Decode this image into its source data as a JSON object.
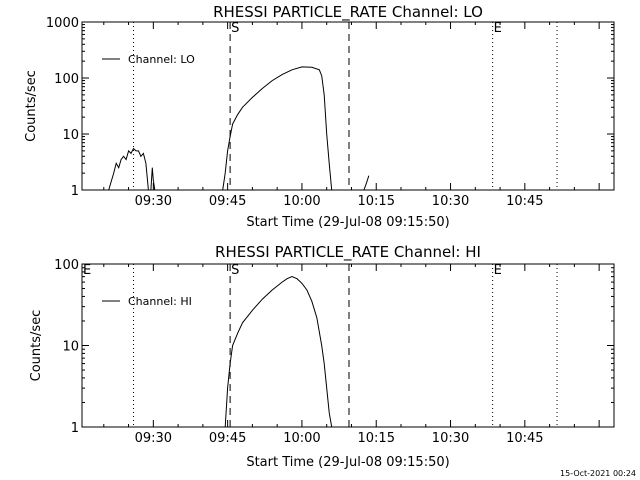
{
  "footer": {
    "timestamp": "15-Oct-2021 00:24"
  },
  "chart_data": [
    {
      "type": "line",
      "title": "RHESSI PARTICLE_RATE Channel: LO",
      "xlabel": "Start Time (29-Jul-08 09:15:50)",
      "ylabel": "Counts/sec",
      "y_scale": "log",
      "ylim": [
        1,
        1000
      ],
      "y_ticks": [
        1,
        10,
        100,
        1000
      ],
      "y_tick_labels": [
        "1",
        "10",
        "100",
        "1000"
      ],
      "x_ticks": [
        {
          "label": "09:30",
          "t": 30
        },
        {
          "label": "09:45",
          "t": 45
        },
        {
          "label": "10:00",
          "t": 60
        },
        {
          "label": "10:15",
          "t": 75
        },
        {
          "label": "10:30",
          "t": 90
        },
        {
          "label": "10:45",
          "t": 105
        }
      ],
      "legend": {
        "label": "Channel: LO",
        "position": "top-left"
      },
      "markers": [
        {
          "label": "S",
          "t": 45.5,
          "style": "dashed"
        },
        {
          "label": "",
          "t": 69.5,
          "style": "dashed"
        },
        {
          "label": "",
          "t": 26,
          "style": "dotted"
        },
        {
          "label": "E",
          "t": 98.5,
          "style": "dotted"
        },
        {
          "label": "",
          "t": 111.5,
          "style": "dotted"
        }
      ],
      "series": [
        {
          "segments": [
            [
              [
                21,
                1
              ],
              [
                22,
                2
              ],
              [
                22.5,
                3
              ],
              [
                23,
                2.5
              ],
              [
                23.5,
                3.5
              ],
              [
                24,
                4
              ],
              [
                24.5,
                3.5
              ],
              [
                25,
                5
              ],
              [
                25.5,
                4.5
              ],
              [
                26,
                5.5
              ],
              [
                26.5,
                5
              ],
              [
                27,
                5
              ],
              [
                27.5,
                4
              ],
              [
                28,
                4.5
              ],
              [
                28.5,
                3
              ],
              [
                29,
                1
              ]
            ],
            [
              [
                29.5,
                1
              ],
              [
                29.8,
                2.5
              ],
              [
                30,
                1.5
              ],
              [
                30.3,
                1
              ]
            ],
            [
              [
                44,
                1
              ],
              [
                44.5,
                2
              ],
              [
                45,
                5
              ],
              [
                45.5,
                9
              ],
              [
                46,
                15
              ],
              [
                47,
                22
              ],
              [
                48,
                30
              ],
              [
                50,
                45
              ],
              [
                52,
                65
              ],
              [
                54,
                90
              ],
              [
                56,
                115
              ],
              [
                58,
                140
              ],
              [
                60,
                158
              ],
              [
                62,
                155
              ],
              [
                63.5,
                140
              ],
              [
                64,
                110
              ],
              [
                64.5,
                50
              ],
              [
                65,
                10
              ],
              [
                65.5,
                3
              ],
              [
                66,
                1
              ]
            ],
            [
              [
                72.5,
                1
              ],
              [
                73,
                1.3
              ],
              [
                73.5,
                1.8
              ]
            ]
          ]
        }
      ]
    },
    {
      "type": "line",
      "title": "RHESSI PARTICLE_RATE Channel: HI",
      "xlabel": "Start Time (29-Jul-08 09:15:50)",
      "ylabel": "Counts/sec",
      "y_scale": "log",
      "ylim": [
        1,
        100
      ],
      "y_ticks": [
        1,
        10,
        100
      ],
      "y_tick_labels": [
        "1",
        "10",
        "100"
      ],
      "x_ticks": [
        {
          "label": "09:30",
          "t": 30
        },
        {
          "label": "09:45",
          "t": 45
        },
        {
          "label": "10:00",
          "t": 60
        },
        {
          "label": "10:15",
          "t": 75
        },
        {
          "label": "10:30",
          "t": 90
        },
        {
          "label": "10:45",
          "t": 105
        }
      ],
      "legend": {
        "label": "Channel: HI",
        "position": "top-left"
      },
      "markers": [
        {
          "label": "E",
          "t": 15.6,
          "style": "none"
        },
        {
          "label": "S",
          "t": 45.5,
          "style": "dashed"
        },
        {
          "label": "",
          "t": 69.5,
          "style": "dashed"
        },
        {
          "label": "",
          "t": 26,
          "style": "dotted"
        },
        {
          "label": "E",
          "t": 98.5,
          "style": "dotted"
        },
        {
          "label": "",
          "t": 111.5,
          "style": "dotted"
        }
      ],
      "series": [
        {
          "segments": [
            [
              [
                44.5,
                1
              ],
              [
                45,
                3
              ],
              [
                45.5,
                6
              ],
              [
                46,
                10
              ],
              [
                47,
                14
              ],
              [
                48,
                19
              ],
              [
                50,
                27
              ],
              [
                52,
                37
              ],
              [
                54,
                48
              ],
              [
                56,
                60
              ],
              [
                57,
                66
              ],
              [
                58,
                70
              ],
              [
                59,
                66
              ],
              [
                60,
                58
              ],
              [
                61,
                48
              ],
              [
                62,
                35
              ],
              [
                63,
                22
              ],
              [
                64,
                10
              ],
              [
                64.5,
                6
              ],
              [
                65,
                3
              ],
              [
                65.5,
                1.5
              ],
              [
                66,
                1
              ]
            ]
          ]
        }
      ]
    }
  ]
}
